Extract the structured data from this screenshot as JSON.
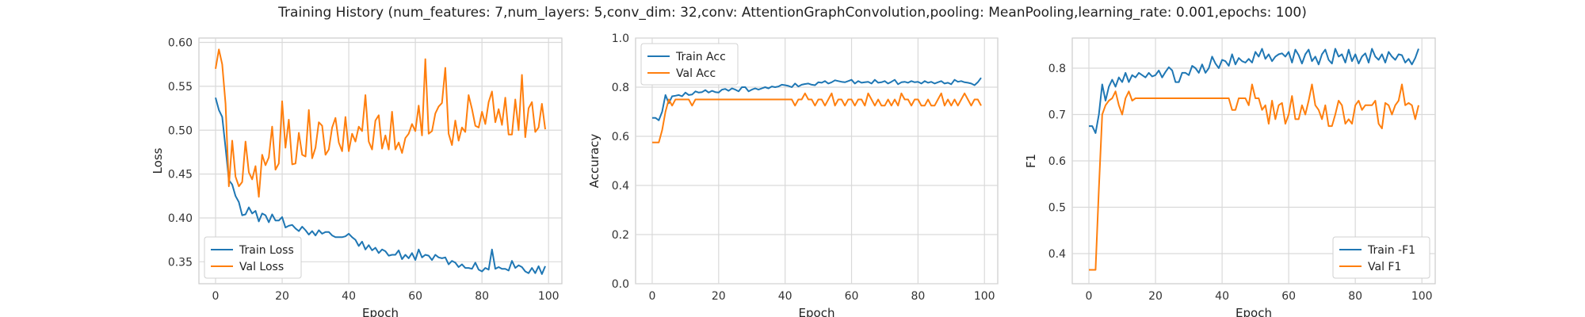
{
  "figure": {
    "title": "Training History (num_features: 7,num_layers: 5,conv_dim: 32,conv: AttentionGraphConvolution,pooling: MeanPooling,learning_rate: 0.001,epochs: 100)"
  },
  "colors": {
    "series0": "#1f77b4",
    "series1": "#ff7f0e"
  },
  "chart_data": [
    {
      "type": "line",
      "xlabel": "Epoch",
      "ylabel": "Loss",
      "xlim": [
        -5,
        104
      ],
      "ylim": [
        0.325,
        0.605
      ],
      "xticks": [
        0,
        20,
        40,
        60,
        80,
        100
      ],
      "yticks": [
        0.35,
        0.4,
        0.45,
        0.5,
        0.55,
        0.6
      ],
      "ytick_labels": [
        "0.35",
        "0.40",
        "0.45",
        "0.50",
        "0.55",
        "0.60"
      ],
      "grid": true,
      "legend_position": "lower-left",
      "x": [
        0,
        1,
        2,
        3,
        4,
        5,
        6,
        7,
        8,
        9,
        10,
        11,
        12,
        13,
        14,
        15,
        16,
        17,
        18,
        19,
        20,
        21,
        22,
        23,
        24,
        25,
        26,
        27,
        28,
        29,
        30,
        31,
        32,
        33,
        34,
        35,
        36,
        37,
        38,
        39,
        40,
        41,
        42,
        43,
        44,
        45,
        46,
        47,
        48,
        49,
        50,
        51,
        52,
        53,
        54,
        55,
        56,
        57,
        58,
        59,
        60,
        61,
        62,
        63,
        64,
        65,
        66,
        67,
        68,
        69,
        70,
        71,
        72,
        73,
        74,
        75,
        76,
        77,
        78,
        79,
        80,
        81,
        82,
        83,
        84,
        85,
        86,
        87,
        88,
        89,
        90,
        91,
        92,
        93,
        94,
        95,
        96,
        97,
        98,
        99
      ],
      "series": [
        {
          "name": "Train Loss",
          "values": [
            0.537,
            0.523,
            0.515,
            0.48,
            0.443,
            0.438,
            0.425,
            0.418,
            0.403,
            0.404,
            0.412,
            0.405,
            0.408,
            0.396,
            0.405,
            0.403,
            0.395,
            0.404,
            0.397,
            0.397,
            0.401,
            0.389,
            0.391,
            0.392,
            0.388,
            0.385,
            0.39,
            0.386,
            0.381,
            0.385,
            0.38,
            0.386,
            0.382,
            0.384,
            0.384,
            0.38,
            0.378,
            0.378,
            0.378,
            0.379,
            0.382,
            0.378,
            0.375,
            0.368,
            0.373,
            0.364,
            0.369,
            0.363,
            0.366,
            0.36,
            0.364,
            0.362,
            0.357,
            0.358,
            0.358,
            0.363,
            0.353,
            0.358,
            0.354,
            0.36,
            0.352,
            0.364,
            0.355,
            0.358,
            0.357,
            0.352,
            0.358,
            0.355,
            0.354,
            0.355,
            0.347,
            0.351,
            0.349,
            0.344,
            0.347,
            0.343,
            0.343,
            0.342,
            0.349,
            0.341,
            0.339,
            0.343,
            0.341,
            0.364,
            0.342,
            0.344,
            0.342,
            0.342,
            0.34,
            0.351,
            0.343,
            0.346,
            0.344,
            0.339,
            0.337,
            0.343,
            0.337,
            0.345,
            0.336,
            0.345
          ]
        },
        {
          "name": "Val Loss",
          "values": [
            0.57,
            0.592,
            0.575,
            0.53,
            0.436,
            0.488,
            0.447,
            0.436,
            0.441,
            0.487,
            0.452,
            0.444,
            0.459,
            0.424,
            0.472,
            0.46,
            0.469,
            0.504,
            0.455,
            0.462,
            0.533,
            0.48,
            0.512,
            0.461,
            0.462,
            0.497,
            0.472,
            0.47,
            0.523,
            0.468,
            0.48,
            0.509,
            0.505,
            0.472,
            0.478,
            0.503,
            0.514,
            0.486,
            0.476,
            0.515,
            0.476,
            0.496,
            0.487,
            0.504,
            0.499,
            0.54,
            0.487,
            0.478,
            0.511,
            0.517,
            0.479,
            0.494,
            0.478,
            0.521,
            0.478,
            0.486,
            0.474,
            0.491,
            0.496,
            0.507,
            0.499,
            0.528,
            0.494,
            0.581,
            0.496,
            0.499,
            0.519,
            0.527,
            0.531,
            0.571,
            0.496,
            0.483,
            0.511,
            0.488,
            0.503,
            0.498,
            0.54,
            0.524,
            0.505,
            0.503,
            0.521,
            0.507,
            0.532,
            0.544,
            0.509,
            0.524,
            0.506,
            0.537,
            0.495,
            0.495,
            0.535,
            0.5,
            0.563,
            0.492,
            0.525,
            0.532,
            0.498,
            0.503,
            0.53,
            0.501
          ]
        }
      ]
    },
    {
      "type": "line",
      "xlabel": "Epoch",
      "ylabel": "Accuracy",
      "xlim": [
        -5,
        104
      ],
      "ylim": [
        0.0,
        1.0
      ],
      "xticks": [
        0,
        20,
        40,
        60,
        80,
        100
      ],
      "yticks": [
        0.0,
        0.2,
        0.4,
        0.6,
        0.8,
        1.0
      ],
      "ytick_labels": [
        "0.0",
        "0.2",
        "0.4",
        "0.6",
        "0.8",
        "1.0"
      ],
      "grid": true,
      "legend_position": "upper-left",
      "x": [
        0,
        1,
        2,
        3,
        4,
        5,
        6,
        7,
        8,
        9,
        10,
        11,
        12,
        13,
        14,
        15,
        16,
        17,
        18,
        19,
        20,
        21,
        22,
        23,
        24,
        25,
        26,
        27,
        28,
        29,
        30,
        31,
        32,
        33,
        34,
        35,
        36,
        37,
        38,
        39,
        40,
        41,
        42,
        43,
        44,
        45,
        46,
        47,
        48,
        49,
        50,
        51,
        52,
        53,
        54,
        55,
        56,
        57,
        58,
        59,
        60,
        61,
        62,
        63,
        64,
        65,
        66,
        67,
        68,
        69,
        70,
        71,
        72,
        73,
        74,
        75,
        76,
        77,
        78,
        79,
        80,
        81,
        82,
        83,
        84,
        85,
        86,
        87,
        88,
        89,
        90,
        91,
        92,
        93,
        94,
        95,
        96,
        97,
        98,
        99
      ],
      "series": [
        {
          "name": "Train Acc",
          "values": [
            0.675,
            0.675,
            0.665,
            0.7,
            0.768,
            0.735,
            0.763,
            0.765,
            0.768,
            0.763,
            0.778,
            0.768,
            0.77,
            0.783,
            0.778,
            0.78,
            0.788,
            0.778,
            0.785,
            0.78,
            0.778,
            0.79,
            0.793,
            0.785,
            0.795,
            0.79,
            0.783,
            0.8,
            0.8,
            0.783,
            0.79,
            0.795,
            0.79,
            0.795,
            0.8,
            0.795,
            0.803,
            0.8,
            0.803,
            0.81,
            0.808,
            0.805,
            0.8,
            0.815,
            0.803,
            0.81,
            0.813,
            0.815,
            0.81,
            0.808,
            0.82,
            0.818,
            0.825,
            0.815,
            0.82,
            0.828,
            0.825,
            0.822,
            0.82,
            0.825,
            0.83,
            0.815,
            0.825,
            0.818,
            0.82,
            0.822,
            0.815,
            0.83,
            0.818,
            0.82,
            0.825,
            0.815,
            0.822,
            0.83,
            0.812,
            0.82,
            0.822,
            0.818,
            0.825,
            0.82,
            0.822,
            0.815,
            0.825,
            0.818,
            0.822,
            0.815,
            0.82,
            0.825,
            0.815,
            0.818,
            0.812,
            0.83,
            0.822,
            0.825,
            0.82,
            0.818,
            0.815,
            0.808,
            0.82,
            0.838
          ]
        },
        {
          "name": "Val Acc",
          "values": [
            0.575,
            0.575,
            0.575,
            0.625,
            0.7,
            0.75,
            0.725,
            0.75,
            0.75,
            0.75,
            0.75,
            0.75,
            0.725,
            0.75,
            0.75,
            0.75,
            0.75,
            0.75,
            0.75,
            0.75,
            0.75,
            0.75,
            0.75,
            0.75,
            0.75,
            0.75,
            0.75,
            0.75,
            0.75,
            0.75,
            0.75,
            0.75,
            0.75,
            0.75,
            0.75,
            0.75,
            0.75,
            0.75,
            0.75,
            0.75,
            0.75,
            0.75,
            0.75,
            0.725,
            0.75,
            0.75,
            0.775,
            0.75,
            0.75,
            0.725,
            0.75,
            0.75,
            0.725,
            0.75,
            0.775,
            0.725,
            0.75,
            0.75,
            0.725,
            0.75,
            0.75,
            0.725,
            0.75,
            0.75,
            0.725,
            0.775,
            0.75,
            0.725,
            0.75,
            0.725,
            0.725,
            0.75,
            0.725,
            0.75,
            0.725,
            0.775,
            0.75,
            0.75,
            0.725,
            0.75,
            0.75,
            0.725,
            0.725,
            0.75,
            0.725,
            0.725,
            0.75,
            0.775,
            0.725,
            0.75,
            0.725,
            0.75,
            0.725,
            0.75,
            0.775,
            0.75,
            0.725,
            0.75,
            0.75,
            0.725
          ]
        }
      ]
    },
    {
      "type": "line",
      "xlabel": "Epoch",
      "ylabel": "F1",
      "xlim": [
        -5,
        104
      ],
      "ylim": [
        0.335,
        0.865
      ],
      "xticks": [
        0,
        20,
        40,
        60,
        80,
        100
      ],
      "yticks": [
        0.4,
        0.5,
        0.6,
        0.7,
        0.8
      ],
      "ytick_labels": [
        "0.4",
        "0.5",
        "0.6",
        "0.7",
        "0.8"
      ],
      "grid": true,
      "legend_position": "lower-right",
      "x": [
        0,
        1,
        2,
        3,
        4,
        5,
        6,
        7,
        8,
        9,
        10,
        11,
        12,
        13,
        14,
        15,
        16,
        17,
        18,
        19,
        20,
        21,
        22,
        23,
        24,
        25,
        26,
        27,
        28,
        29,
        30,
        31,
        32,
        33,
        34,
        35,
        36,
        37,
        38,
        39,
        40,
        41,
        42,
        43,
        44,
        45,
        46,
        47,
        48,
        49,
        50,
        51,
        52,
        53,
        54,
        55,
        56,
        57,
        58,
        59,
        60,
        61,
        62,
        63,
        64,
        65,
        66,
        67,
        68,
        69,
        70,
        71,
        72,
        73,
        74,
        75,
        76,
        77,
        78,
        79,
        80,
        81,
        82,
        83,
        84,
        85,
        86,
        87,
        88,
        89,
        90,
        91,
        92,
        93,
        94,
        95,
        96,
        97,
        98,
        99
      ],
      "series": [
        {
          "name": "Train -F1",
          "values": [
            0.675,
            0.675,
            0.66,
            0.7,
            0.765,
            0.73,
            0.76,
            0.775,
            0.76,
            0.78,
            0.77,
            0.79,
            0.77,
            0.785,
            0.78,
            0.79,
            0.785,
            0.78,
            0.79,
            0.782,
            0.785,
            0.795,
            0.78,
            0.792,
            0.802,
            0.795,
            0.77,
            0.77,
            0.79,
            0.79,
            0.785,
            0.805,
            0.8,
            0.79,
            0.808,
            0.79,
            0.8,
            0.825,
            0.81,
            0.8,
            0.818,
            0.815,
            0.805,
            0.83,
            0.808,
            0.822,
            0.815,
            0.812,
            0.82,
            0.812,
            0.835,
            0.825,
            0.842,
            0.82,
            0.83,
            0.815,
            0.825,
            0.83,
            0.832,
            0.825,
            0.835,
            0.812,
            0.84,
            0.828,
            0.81,
            0.83,
            0.84,
            0.815,
            0.825,
            0.808,
            0.83,
            0.84,
            0.818,
            0.81,
            0.842,
            0.825,
            0.83,
            0.812,
            0.84,
            0.815,
            0.83,
            0.81,
            0.825,
            0.832,
            0.812,
            0.842,
            0.825,
            0.818,
            0.83,
            0.812,
            0.835,
            0.825,
            0.818,
            0.83,
            0.828,
            0.812,
            0.82,
            0.808,
            0.822,
            0.842
          ]
        },
        {
          "name": "Val F1",
          "values": [
            0.365,
            0.365,
            0.365,
            0.54,
            0.7,
            0.72,
            0.73,
            0.735,
            0.75,
            0.72,
            0.7,
            0.735,
            0.75,
            0.73,
            0.735,
            0.735,
            0.735,
            0.735,
            0.735,
            0.735,
            0.735,
            0.735,
            0.735,
            0.735,
            0.735,
            0.735,
            0.735,
            0.735,
            0.735,
            0.735,
            0.735,
            0.735,
            0.735,
            0.735,
            0.735,
            0.735,
            0.735,
            0.735,
            0.735,
            0.735,
            0.735,
            0.735,
            0.735,
            0.71,
            0.71,
            0.735,
            0.735,
            0.735,
            0.72,
            0.765,
            0.735,
            0.735,
            0.71,
            0.72,
            0.68,
            0.73,
            0.69,
            0.72,
            0.725,
            0.68,
            0.7,
            0.74,
            0.69,
            0.69,
            0.72,
            0.7,
            0.73,
            0.765,
            0.72,
            0.71,
            0.69,
            0.72,
            0.675,
            0.675,
            0.7,
            0.73,
            0.72,
            0.68,
            0.69,
            0.68,
            0.72,
            0.73,
            0.71,
            0.72,
            0.72,
            0.72,
            0.73,
            0.68,
            0.67,
            0.725,
            0.72,
            0.7,
            0.72,
            0.73,
            0.765,
            0.72,
            0.725,
            0.72,
            0.69,
            0.72
          ]
        }
      ]
    }
  ]
}
